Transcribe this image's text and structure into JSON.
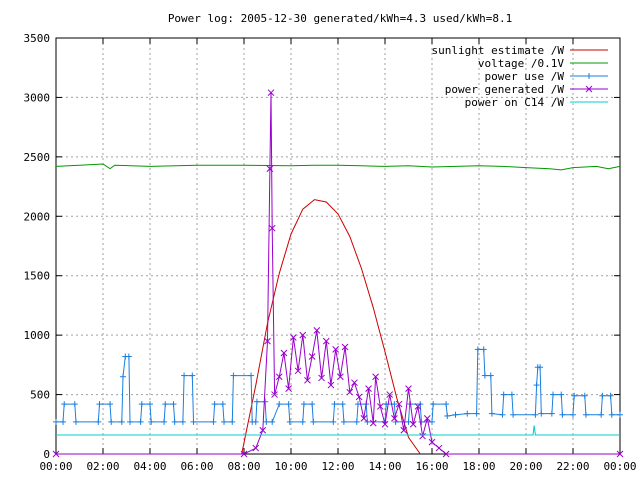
{
  "chart_data": {
    "type": "line",
    "title": "Power log: 2005-12-30 generated/kWh=4.3 used/kWh=8.1",
    "xlabel": "",
    "ylabel": "",
    "x_ticks": [
      "00:00",
      "02:00",
      "04:00",
      "06:00",
      "08:00",
      "10:00",
      "12:00",
      "14:00",
      "16:00",
      "18:00",
      "20:00",
      "22:00",
      "00:00"
    ],
    "xlim_hours": [
      0,
      24
    ],
    "y_ticks": [
      0,
      500,
      1000,
      1500,
      2000,
      2500,
      3000,
      3500
    ],
    "ylim": [
      0,
      3500
    ],
    "grid": true,
    "legend_position": "top-right",
    "series": [
      {
        "name": "sunlight estimate /W",
        "color": "#cc0000",
        "marker": "none",
        "points": [
          [
            7.9,
            0
          ],
          [
            8.5,
            580
          ],
          [
            9.0,
            1100
          ],
          [
            9.5,
            1520
          ],
          [
            10.0,
            1850
          ],
          [
            10.5,
            2060
          ],
          [
            11.0,
            2140
          ],
          [
            11.5,
            2120
          ],
          [
            12.0,
            2020
          ],
          [
            12.5,
            1830
          ],
          [
            13.0,
            1560
          ],
          [
            13.5,
            1230
          ],
          [
            14.0,
            860
          ],
          [
            14.5,
            470
          ],
          [
            15.0,
            140
          ],
          [
            15.5,
            0
          ]
        ]
      },
      {
        "name": "voltage /0.1V",
        "color": "#009900",
        "marker": "none",
        "points": [
          [
            0,
            2420
          ],
          [
            1,
            2430
          ],
          [
            2,
            2440
          ],
          [
            2.3,
            2400
          ],
          [
            2.5,
            2430
          ],
          [
            4,
            2420
          ],
          [
            6,
            2430
          ],
          [
            8,
            2430
          ],
          [
            10,
            2425
          ],
          [
            11,
            2430
          ],
          [
            12,
            2430
          ],
          [
            13,
            2425
          ],
          [
            14,
            2420
          ],
          [
            15,
            2425
          ],
          [
            16,
            2415
          ],
          [
            17,
            2420
          ],
          [
            18,
            2425
          ],
          [
            19,
            2420
          ],
          [
            20,
            2410
          ],
          [
            21,
            2400
          ],
          [
            21.5,
            2390
          ],
          [
            22,
            2410
          ],
          [
            23,
            2420
          ],
          [
            23.5,
            2400
          ],
          [
            24,
            2420
          ]
        ]
      },
      {
        "name": "power use /W",
        "color": "#1a7fe0",
        "marker": "plus",
        "points": [
          [
            0,
            270
          ],
          [
            0.3,
            270
          ],
          [
            0.35,
            420
          ],
          [
            0.8,
            420
          ],
          [
            0.85,
            270
          ],
          [
            1.8,
            270
          ],
          [
            1.85,
            420
          ],
          [
            2.3,
            420
          ],
          [
            2.35,
            270
          ],
          [
            2.8,
            270
          ],
          [
            2.85,
            650
          ],
          [
            2.95,
            820
          ],
          [
            3.1,
            820
          ],
          [
            3.15,
            270
          ],
          [
            3.6,
            270
          ],
          [
            3.65,
            420
          ],
          [
            4.0,
            420
          ],
          [
            4.05,
            270
          ],
          [
            4.6,
            270
          ],
          [
            4.65,
            420
          ],
          [
            5.0,
            420
          ],
          [
            5.05,
            270
          ],
          [
            5.4,
            270
          ],
          [
            5.45,
            660
          ],
          [
            5.8,
            660
          ],
          [
            5.85,
            270
          ],
          [
            6.7,
            270
          ],
          [
            6.75,
            420
          ],
          [
            7.1,
            420
          ],
          [
            7.15,
            270
          ],
          [
            7.5,
            270
          ],
          [
            7.55,
            660
          ],
          [
            8.3,
            660
          ],
          [
            8.35,
            270
          ],
          [
            8.5,
            270
          ],
          [
            8.55,
            440
          ],
          [
            8.9,
            440
          ],
          [
            8.95,
            270
          ],
          [
            9.2,
            270
          ],
          [
            9.5,
            420
          ],
          [
            9.9,
            420
          ],
          [
            9.95,
            270
          ],
          [
            10.5,
            270
          ],
          [
            10.55,
            420
          ],
          [
            10.9,
            420
          ],
          [
            10.95,
            270
          ],
          [
            11.8,
            270
          ],
          [
            11.85,
            420
          ],
          [
            12.2,
            420
          ],
          [
            12.25,
            270
          ],
          [
            12.8,
            270
          ],
          [
            12.85,
            420
          ],
          [
            13.2,
            420
          ],
          [
            13.25,
            270
          ],
          [
            14.0,
            270
          ],
          [
            14.05,
            420
          ],
          [
            14.4,
            420
          ],
          [
            14.45,
            270
          ],
          [
            15.0,
            270
          ],
          [
            15.05,
            420
          ],
          [
            15.5,
            420
          ],
          [
            15.55,
            270
          ],
          [
            16.0,
            270
          ],
          [
            16.05,
            420
          ],
          [
            16.6,
            420
          ],
          [
            16.65,
            320
          ],
          [
            17.0,
            330
          ],
          [
            17.5,
            340
          ],
          [
            17.9,
            340
          ],
          [
            17.95,
            880
          ],
          [
            18.2,
            880
          ],
          [
            18.25,
            660
          ],
          [
            18.5,
            660
          ],
          [
            18.55,
            340
          ],
          [
            19.0,
            330
          ],
          [
            19.05,
            500
          ],
          [
            19.4,
            500
          ],
          [
            19.45,
            330
          ],
          [
            20.4,
            330
          ],
          [
            20.45,
            580
          ],
          [
            20.5,
            730
          ],
          [
            20.6,
            730
          ],
          [
            20.65,
            340
          ],
          [
            21.1,
            340
          ],
          [
            21.15,
            500
          ],
          [
            21.5,
            500
          ],
          [
            21.55,
            330
          ],
          [
            22.0,
            330
          ],
          [
            22.05,
            490
          ],
          [
            22.5,
            490
          ],
          [
            22.55,
            330
          ],
          [
            23.2,
            330
          ],
          [
            23.25,
            490
          ],
          [
            23.6,
            490
          ],
          [
            23.65,
            330
          ],
          [
            24.0,
            330
          ]
        ]
      },
      {
        "name": "power generated /W",
        "color": "#9900cc",
        "marker": "x",
        "points": [
          [
            0,
            0
          ],
          [
            8.0,
            0
          ],
          [
            8.5,
            50
          ],
          [
            8.8,
            200
          ],
          [
            9.0,
            950
          ],
          [
            9.1,
            2400
          ],
          [
            9.15,
            3040
          ],
          [
            9.2,
            1900
          ],
          [
            9.3,
            500
          ],
          [
            9.5,
            650
          ],
          [
            9.7,
            850
          ],
          [
            9.9,
            550
          ],
          [
            10.1,
            980
          ],
          [
            10.3,
            700
          ],
          [
            10.5,
            1000
          ],
          [
            10.7,
            620
          ],
          [
            10.9,
            820
          ],
          [
            11.1,
            1040
          ],
          [
            11.3,
            640
          ],
          [
            11.5,
            950
          ],
          [
            11.7,
            580
          ],
          [
            11.9,
            880
          ],
          [
            12.1,
            650
          ],
          [
            12.3,
            900
          ],
          [
            12.5,
            520
          ],
          [
            12.7,
            600
          ],
          [
            12.9,
            480
          ],
          [
            13.1,
            300
          ],
          [
            13.3,
            550
          ],
          [
            13.5,
            260
          ],
          [
            13.6,
            650
          ],
          [
            13.8,
            400
          ],
          [
            14.0,
            250
          ],
          [
            14.2,
            500
          ],
          [
            14.4,
            300
          ],
          [
            14.6,
            420
          ],
          [
            14.8,
            200
          ],
          [
            15.0,
            550
          ],
          [
            15.2,
            250
          ],
          [
            15.4,
            400
          ],
          [
            15.6,
            150
          ],
          [
            15.8,
            300
          ],
          [
            16.0,
            100
          ],
          [
            16.3,
            50
          ],
          [
            16.6,
            0
          ],
          [
            24.0,
            0
          ]
        ]
      },
      {
        "name": "power on C14 /W",
        "color": "#00cccc",
        "marker": "none",
        "points": [
          [
            0,
            160
          ],
          [
            20.3,
            160
          ],
          [
            20.35,
            240
          ],
          [
            20.4,
            160
          ],
          [
            24,
            160
          ]
        ]
      }
    ]
  }
}
